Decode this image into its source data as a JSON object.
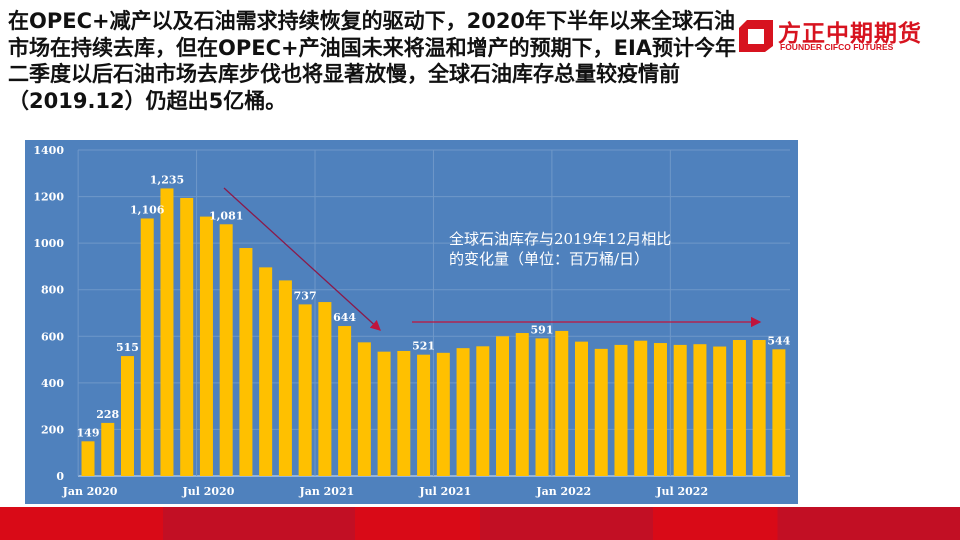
{
  "title": "在OPEC+减产以及石油需求持续恢复的驱动下，2020年下半年以来全球石油市场在持续去库，但在OPEC+产油国未来将温和增产的预期下，EIA预计今年二季度以后石油市场去库步伐也将显著放慢，全球石油库存总量较疫情前（2019.12）仍超出5亿桶。",
  "logo": {
    "cn": "方正中期期货",
    "en": "FOUNDER CIFCO FUTURES"
  },
  "colors": {
    "panel": "#4f81bd",
    "bar": "#ffc000",
    "arrow": "#c0143c",
    "footer": "#d90a17"
  },
  "chart_data": {
    "type": "bar",
    "annotation": [
      "全球石油库存与2019年12月相比",
      "的变化量（单位：百万桶/日）"
    ],
    "categories": [
      "Jan 2020",
      "Feb 2020",
      "Mar 2020",
      "Apr 2020",
      "May 2020",
      "Jun 2020",
      "Jul 2020",
      "Aug 2020",
      "Sep 2020",
      "Oct 2020",
      "Nov 2020",
      "Dec 2020",
      "Jan 2021",
      "Feb 2021",
      "Mar 2021",
      "Apr 2021",
      "May 2021",
      "Jun 2021",
      "Jul 2021",
      "Aug 2021",
      "Sep 2021",
      "Oct 2021",
      "Nov 2021",
      "Dec 2021",
      "Jan 2022",
      "Feb 2022",
      "Mar 2022",
      "Apr 2022",
      "May 2022",
      "Jun 2022",
      "Jul 2022",
      "Aug 2022",
      "Sep 2022",
      "Oct 2022",
      "Nov 2022",
      "Dec 2022"
    ],
    "values": [
      149,
      228,
      515,
      1106,
      1235,
      1194,
      1114,
      1081,
      979,
      896,
      840,
      737,
      747,
      644,
      574,
      534,
      537,
      521,
      529,
      549,
      557,
      600,
      614,
      591,
      623,
      577,
      546,
      563,
      581,
      571,
      563,
      566,
      556,
      584,
      584,
      544
    ],
    "data_labels": {
      "0": "149",
      "1": "228",
      "2": "515",
      "3": "1,106",
      "4": "1,235",
      "7": "1,081",
      "11": "737",
      "13": "644",
      "17": "521",
      "23": "591",
      "35": "544"
    },
    "x_ticks": [
      "Jan 2020",
      "Jul 2020",
      "Jan 2021",
      "Jul 2021",
      "Jan 2022",
      "Jul 2022"
    ],
    "y_ticks": [
      0,
      200,
      400,
      600,
      800,
      1000,
      1200,
      1400
    ],
    "ylim": [
      0,
      1400
    ],
    "grid": true
  }
}
